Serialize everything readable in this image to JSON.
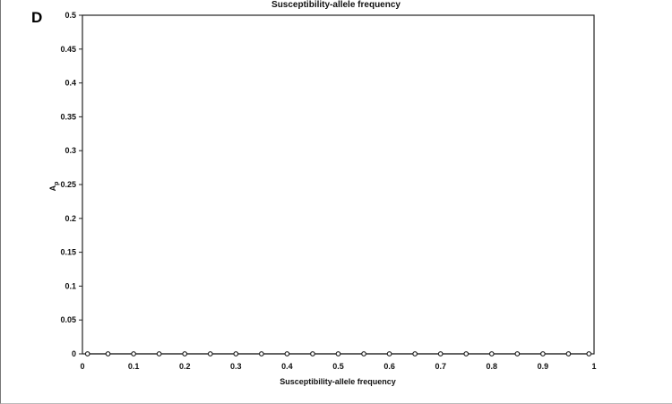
{
  "panel_label": "D",
  "top_cut_title": "Susceptibility-allele frequency",
  "chart_data": {
    "type": "line",
    "xlabel": "Susceptibility-allele frequency",
    "ylabel": "Ap",
    "ylabel_main": "A",
    "ylabel_sub": "p",
    "xlim": [
      0,
      1
    ],
    "ylim": [
      0,
      0.5
    ],
    "xticks": [
      "0",
      "0.1",
      "0.2",
      "0.3",
      "0.4",
      "0.5",
      "0.6",
      "0.7",
      "0.8",
      "0.9",
      "1"
    ],
    "yticks": [
      "0",
      "0.05",
      "0.1",
      "0.15",
      "0.2",
      "0.25",
      "0.3",
      "0.35",
      "0.4",
      "0.45",
      "0.5"
    ],
    "grid": false,
    "marker": "open-circle",
    "x": [
      0.01,
      0.05,
      0.1,
      0.15,
      0.2,
      0.25,
      0.3,
      0.35,
      0.4,
      0.45,
      0.5,
      0.55,
      0.6,
      0.65,
      0.7,
      0.75,
      0.8,
      0.85,
      0.9,
      0.95,
      0.99
    ],
    "y": [
      0,
      0,
      0,
      0,
      0,
      0,
      0,
      0,
      0,
      0,
      0,
      0,
      0,
      0,
      0,
      0,
      0,
      0,
      0,
      0,
      0
    ]
  }
}
